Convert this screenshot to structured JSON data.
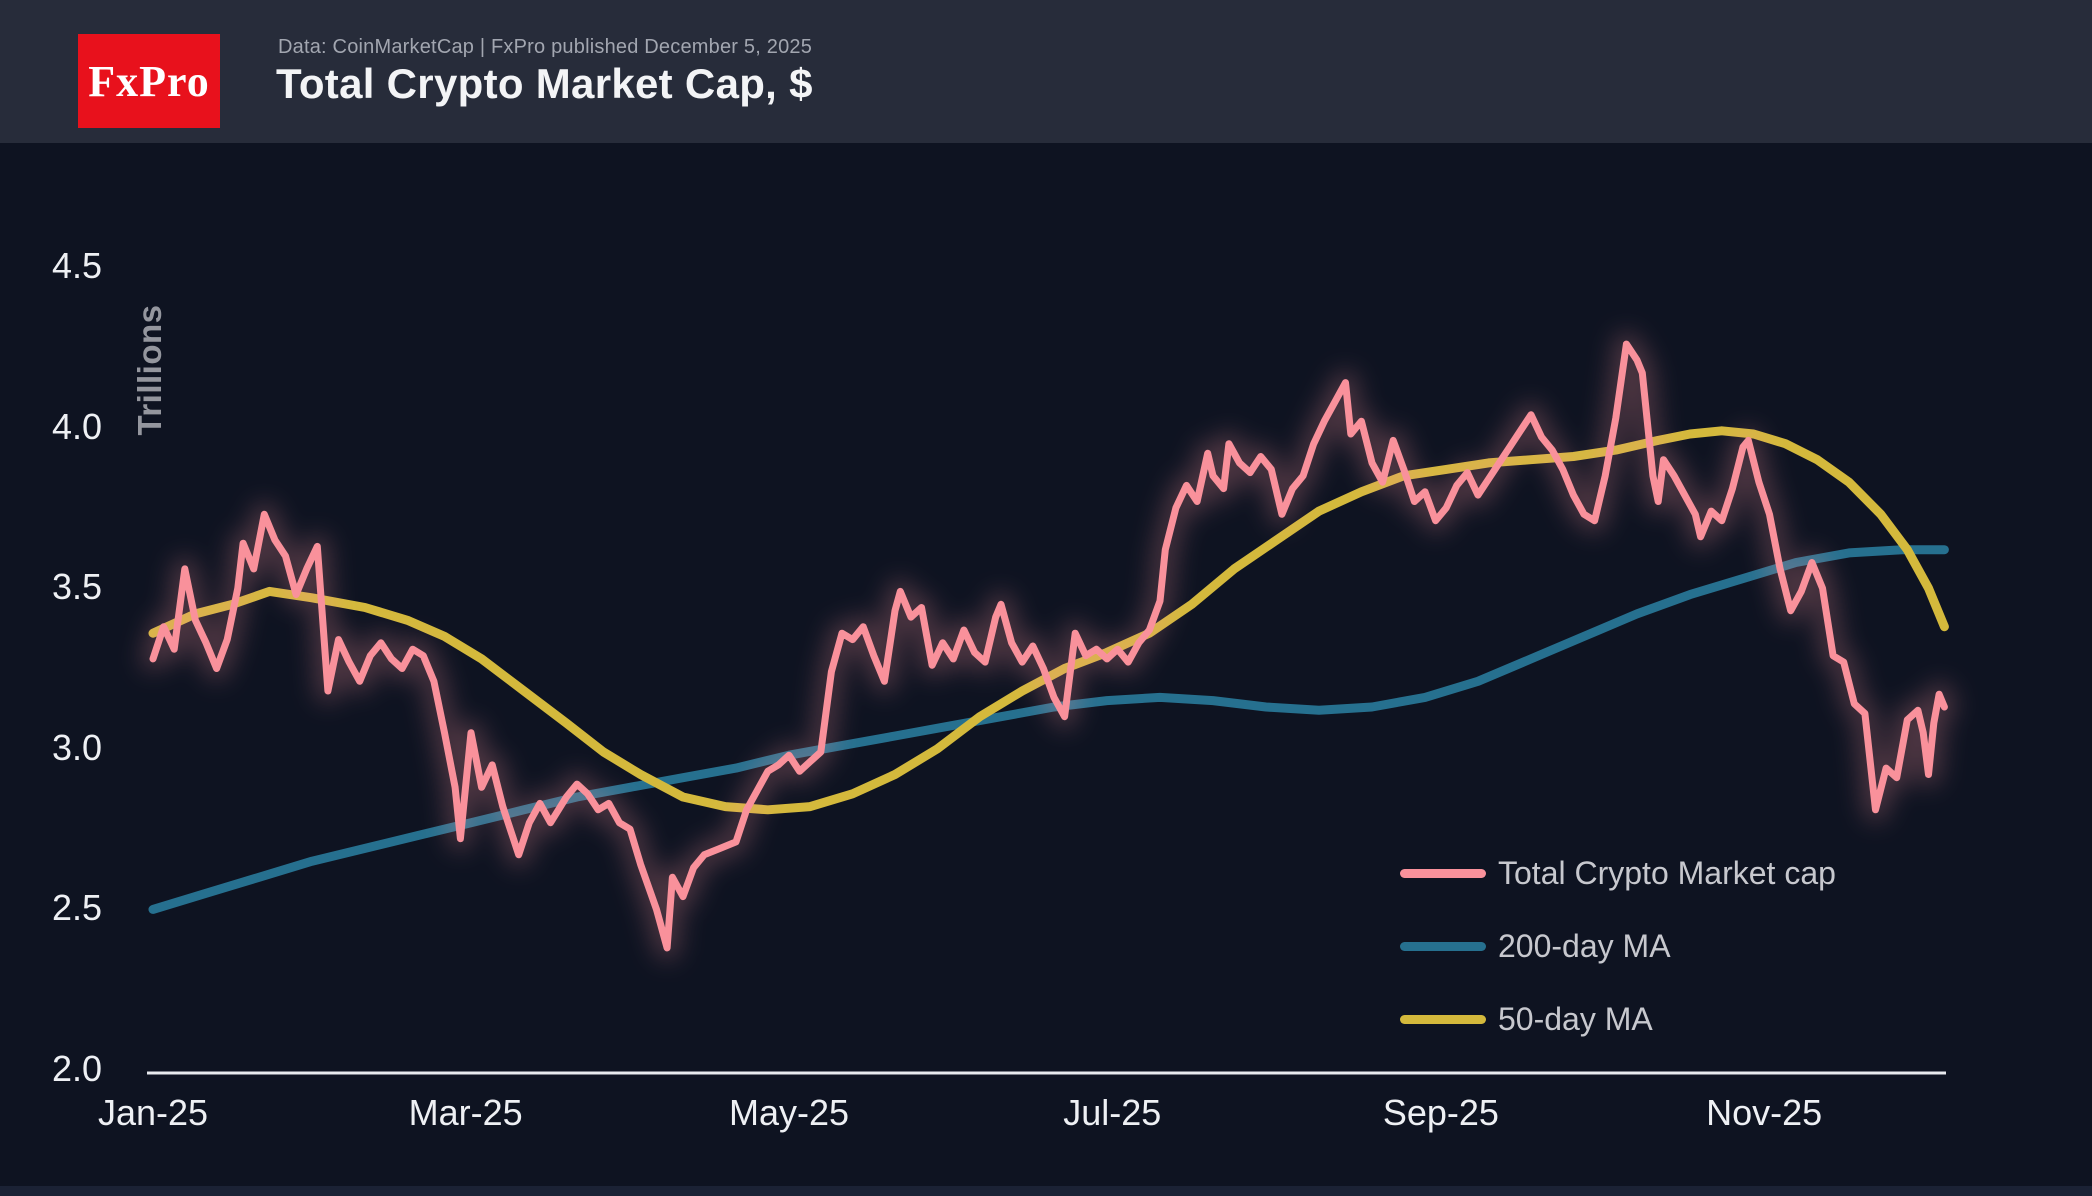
{
  "header": {
    "logo_text": "FxPro",
    "source_line": "Data: CoinMarketCap | FxPro published December 5, 2025",
    "title": "Total Crypto Market Cap, $"
  },
  "colors": {
    "header_bg": "#272c3a",
    "chart_bg": "#0e1321",
    "logo_bg": "#e8111c",
    "axis": "#e8eaee",
    "tick_text": "#eef0f4",
    "legend_text": "#c7c8ce",
    "pink": "#f9919b",
    "blue": "#26708f",
    "yellow": "#d4b93c"
  },
  "chart_data": {
    "type": "line",
    "title": "Total Crypto Market Cap, $",
    "ylabel": "Trillions",
    "x_unit": "days since 2025-01-01",
    "xlim": [
      0,
      338
    ],
    "ylim": [
      2.0,
      4.5
    ],
    "grid": false,
    "legend_position": "bottom-right",
    "y_ticks": [
      {
        "v": 2.0,
        "label": "2.0"
      },
      {
        "v": 2.5,
        "label": "2.5"
      },
      {
        "v": 3.0,
        "label": "3.0"
      },
      {
        "v": 3.5,
        "label": "3.5"
      },
      {
        "v": 4.0,
        "label": "4.0"
      },
      {
        "v": 4.5,
        "label": "4.5"
      }
    ],
    "x_ticks": [
      {
        "day": 0,
        "label": "Jan-25"
      },
      {
        "day": 59,
        "label": "Mar-25"
      },
      {
        "day": 120,
        "label": "May-25"
      },
      {
        "day": 181,
        "label": "Jul-25"
      },
      {
        "day": 243,
        "label": "Sep-25"
      },
      {
        "day": 304,
        "label": "Nov-25"
      }
    ],
    "series": [
      {
        "name": "Total Crypto Market cap",
        "color": "#f9919b",
        "width": 7,
        "glow": true,
        "points": [
          [
            0,
            3.28
          ],
          [
            2,
            3.38
          ],
          [
            4,
            3.31
          ],
          [
            6,
            3.56
          ],
          [
            8,
            3.4
          ],
          [
            10,
            3.33
          ],
          [
            12,
            3.25
          ],
          [
            14,
            3.34
          ],
          [
            16,
            3.5
          ],
          [
            17,
            3.64
          ],
          [
            19,
            3.56
          ],
          [
            21,
            3.73
          ],
          [
            23,
            3.65
          ],
          [
            25,
            3.6
          ],
          [
            27,
            3.48
          ],
          [
            29,
            3.56
          ],
          [
            31,
            3.63
          ],
          [
            33,
            3.18
          ],
          [
            35,
            3.34
          ],
          [
            37,
            3.27
          ],
          [
            39,
            3.21
          ],
          [
            41,
            3.29
          ],
          [
            43,
            3.33
          ],
          [
            45,
            3.28
          ],
          [
            47,
            3.25
          ],
          [
            49,
            3.31
          ],
          [
            51,
            3.29
          ],
          [
            53,
            3.21
          ],
          [
            55,
            3.05
          ],
          [
            57,
            2.88
          ],
          [
            58,
            2.72
          ],
          [
            60,
            3.05
          ],
          [
            62,
            2.88
          ],
          [
            64,
            2.95
          ],
          [
            66,
            2.82
          ],
          [
            69,
            2.67
          ],
          [
            71,
            2.77
          ],
          [
            73,
            2.83
          ],
          [
            75,
            2.77
          ],
          [
            78,
            2.85
          ],
          [
            80,
            2.89
          ],
          [
            82,
            2.86
          ],
          [
            84,
            2.81
          ],
          [
            86,
            2.83
          ],
          [
            88,
            2.77
          ],
          [
            90,
            2.75
          ],
          [
            92,
            2.64
          ],
          [
            95,
            2.5
          ],
          [
            97,
            2.38
          ],
          [
            98,
            2.6
          ],
          [
            100,
            2.54
          ],
          [
            102,
            2.63
          ],
          [
            104,
            2.67
          ],
          [
            107,
            2.69
          ],
          [
            110,
            2.71
          ],
          [
            112,
            2.81
          ],
          [
            114,
            2.87
          ],
          [
            116,
            2.93
          ],
          [
            118,
            2.95
          ],
          [
            120,
            2.98
          ],
          [
            122,
            2.93
          ],
          [
            124,
            2.96
          ],
          [
            126,
            2.99
          ],
          [
            128,
            3.24
          ],
          [
            130,
            3.36
          ],
          [
            132,
            3.34
          ],
          [
            134,
            3.38
          ],
          [
            136,
            3.29
          ],
          [
            138,
            3.21
          ],
          [
            140,
            3.43
          ],
          [
            141,
            3.49
          ],
          [
            143,
            3.41
          ],
          [
            145,
            3.44
          ],
          [
            147,
            3.26
          ],
          [
            149,
            3.33
          ],
          [
            151,
            3.28
          ],
          [
            153,
            3.37
          ],
          [
            155,
            3.3
          ],
          [
            157,
            3.27
          ],
          [
            159,
            3.41
          ],
          [
            160,
            3.45
          ],
          [
            162,
            3.33
          ],
          [
            164,
            3.27
          ],
          [
            166,
            3.32
          ],
          [
            168,
            3.25
          ],
          [
            170,
            3.16
          ],
          [
            172,
            3.1
          ],
          [
            174,
            3.36
          ],
          [
            176,
            3.29
          ],
          [
            178,
            3.31
          ],
          [
            180,
            3.28
          ],
          [
            182,
            3.31
          ],
          [
            184,
            3.27
          ],
          [
            186,
            3.33
          ],
          [
            188,
            3.37
          ],
          [
            190,
            3.46
          ],
          [
            191,
            3.62
          ],
          [
            193,
            3.75
          ],
          [
            195,
            3.82
          ],
          [
            197,
            3.77
          ],
          [
            199,
            3.92
          ],
          [
            200,
            3.85
          ],
          [
            202,
            3.81
          ],
          [
            203,
            3.95
          ],
          [
            205,
            3.89
          ],
          [
            207,
            3.86
          ],
          [
            209,
            3.91
          ],
          [
            211,
            3.87
          ],
          [
            213,
            3.73
          ],
          [
            215,
            3.81
          ],
          [
            217,
            3.85
          ],
          [
            219,
            3.95
          ],
          [
            221,
            4.02
          ],
          [
            223,
            4.08
          ],
          [
            225,
            4.14
          ],
          [
            226,
            3.98
          ],
          [
            228,
            4.02
          ],
          [
            230,
            3.89
          ],
          [
            232,
            3.83
          ],
          [
            234,
            3.96
          ],
          [
            236,
            3.87
          ],
          [
            238,
            3.77
          ],
          [
            240,
            3.8
          ],
          [
            242,
            3.71
          ],
          [
            244,
            3.75
          ],
          [
            246,
            3.82
          ],
          [
            248,
            3.86
          ],
          [
            250,
            3.79
          ],
          [
            252,
            3.84
          ],
          [
            254,
            3.89
          ],
          [
            256,
            3.94
          ],
          [
            258,
            3.99
          ],
          [
            260,
            4.04
          ],
          [
            262,
            3.97
          ],
          [
            264,
            3.93
          ],
          [
            266,
            3.87
          ],
          [
            268,
            3.79
          ],
          [
            270,
            3.73
          ],
          [
            272,
            3.71
          ],
          [
            274,
            3.85
          ],
          [
            276,
            4.03
          ],
          [
            278,
            4.26
          ],
          [
            280,
            4.21
          ],
          [
            281,
            4.17
          ],
          [
            283,
            3.85
          ],
          [
            284,
            3.77
          ],
          [
            285,
            3.9
          ],
          [
            287,
            3.85
          ],
          [
            289,
            3.79
          ],
          [
            291,
            3.73
          ],
          [
            292,
            3.66
          ],
          [
            294,
            3.74
          ],
          [
            296,
            3.71
          ],
          [
            298,
            3.81
          ],
          [
            300,
            3.94
          ],
          [
            301,
            3.96
          ],
          [
            303,
            3.83
          ],
          [
            305,
            3.73
          ],
          [
            307,
            3.56
          ],
          [
            309,
            3.43
          ],
          [
            311,
            3.49
          ],
          [
            313,
            3.58
          ],
          [
            315,
            3.5
          ],
          [
            317,
            3.29
          ],
          [
            319,
            3.27
          ],
          [
            321,
            3.14
          ],
          [
            323,
            3.11
          ],
          [
            325,
            2.81
          ],
          [
            327,
            2.94
          ],
          [
            329,
            2.91
          ],
          [
            331,
            3.09
          ],
          [
            333,
            3.12
          ],
          [
            334,
            3.05
          ],
          [
            335,
            2.92
          ],
          [
            336,
            3.08
          ],
          [
            337,
            3.17
          ],
          [
            338,
            3.13
          ]
        ]
      },
      {
        "name": "200-day MA",
        "color": "#26708f",
        "width": 9,
        "glow": false,
        "points": [
          [
            0,
            2.5
          ],
          [
            10,
            2.55
          ],
          [
            20,
            2.6
          ],
          [
            30,
            2.65
          ],
          [
            40,
            2.69
          ],
          [
            50,
            2.73
          ],
          [
            60,
            2.77
          ],
          [
            70,
            2.81
          ],
          [
            80,
            2.85
          ],
          [
            90,
            2.88
          ],
          [
            100,
            2.91
          ],
          [
            110,
            2.94
          ],
          [
            120,
            2.98
          ],
          [
            130,
            3.01
          ],
          [
            140,
            3.04
          ],
          [
            150,
            3.07
          ],
          [
            160,
            3.1
          ],
          [
            170,
            3.13
          ],
          [
            180,
            3.15
          ],
          [
            190,
            3.16
          ],
          [
            200,
            3.15
          ],
          [
            210,
            3.13
          ],
          [
            220,
            3.12
          ],
          [
            230,
            3.13
          ],
          [
            240,
            3.16
          ],
          [
            250,
            3.21
          ],
          [
            260,
            3.28
          ],
          [
            270,
            3.35
          ],
          [
            280,
            3.42
          ],
          [
            290,
            3.48
          ],
          [
            300,
            3.53
          ],
          [
            310,
            3.58
          ],
          [
            320,
            3.61
          ],
          [
            330,
            3.62
          ],
          [
            338,
            3.62
          ]
        ]
      },
      {
        "name": "50-day MA",
        "color": "#d4b93c",
        "width": 9,
        "glow": false,
        "points": [
          [
            0,
            3.36
          ],
          [
            8,
            3.42
          ],
          [
            15,
            3.45
          ],
          [
            22,
            3.49
          ],
          [
            30,
            3.47
          ],
          [
            40,
            3.44
          ],
          [
            48,
            3.4
          ],
          [
            55,
            3.35
          ],
          [
            62,
            3.28
          ],
          [
            70,
            3.18
          ],
          [
            78,
            3.08
          ],
          [
            85,
            2.99
          ],
          [
            92,
            2.92
          ],
          [
            100,
            2.85
          ],
          [
            108,
            2.82
          ],
          [
            116,
            2.81
          ],
          [
            124,
            2.82
          ],
          [
            132,
            2.86
          ],
          [
            140,
            2.92
          ],
          [
            148,
            3.0
          ],
          [
            156,
            3.1
          ],
          [
            164,
            3.18
          ],
          [
            172,
            3.25
          ],
          [
            180,
            3.3
          ],
          [
            188,
            3.36
          ],
          [
            196,
            3.45
          ],
          [
            204,
            3.56
          ],
          [
            212,
            3.65
          ],
          [
            220,
            3.74
          ],
          [
            228,
            3.8
          ],
          [
            236,
            3.85
          ],
          [
            244,
            3.87
          ],
          [
            252,
            3.89
          ],
          [
            260,
            3.9
          ],
          [
            268,
            3.91
          ],
          [
            276,
            3.93
          ],
          [
            284,
            3.96
          ],
          [
            290,
            3.98
          ],
          [
            296,
            3.99
          ],
          [
            302,
            3.98
          ],
          [
            308,
            3.95
          ],
          [
            314,
            3.9
          ],
          [
            320,
            3.83
          ],
          [
            326,
            3.73
          ],
          [
            331,
            3.62
          ],
          [
            335,
            3.5
          ],
          [
            338,
            3.38
          ]
        ]
      }
    ]
  }
}
